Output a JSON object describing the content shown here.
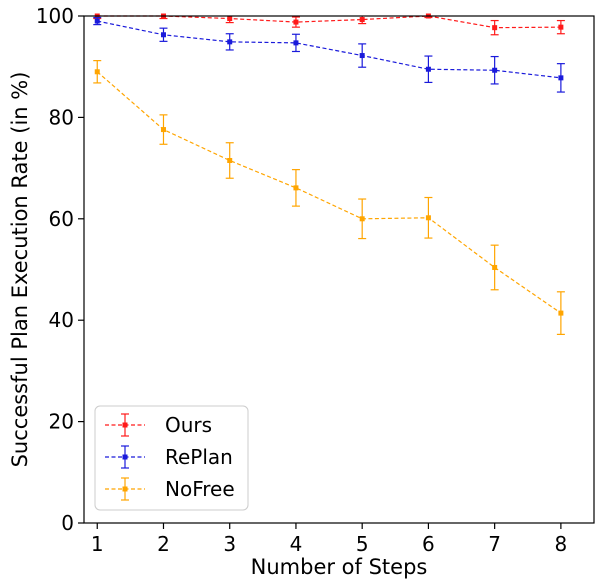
{
  "chart_data": {
    "type": "line",
    "xlabel": "Number of Steps",
    "ylabel": "Successful Plan Execution Rate (in %)",
    "x": [
      1,
      2,
      3,
      4,
      5,
      6,
      7,
      8
    ],
    "xticks": [
      1,
      2,
      3,
      4,
      5,
      6,
      7,
      8
    ],
    "yticks": [
      0,
      20,
      40,
      60,
      80,
      100
    ],
    "xlim": [
      0.8,
      8.5
    ],
    "ylim": [
      0,
      100
    ],
    "grid": false,
    "legend_position": "bottom-left",
    "series": [
      {
        "name": "Ours",
        "color": "#ff1a1a",
        "values": [
          100,
          100,
          99.5,
          98.8,
          99.3,
          100,
          97.7,
          97.8
        ],
        "errors": [
          0.5,
          0.5,
          0.8,
          1.0,
          0.8,
          0.3,
          1.4,
          1.3
        ]
      },
      {
        "name": "RePlan",
        "color": "#1a1adb",
        "values": [
          99,
          96.3,
          94.9,
          94.7,
          92.2,
          89.5,
          89.3,
          87.8
        ],
        "errors": [
          0.7,
          1.3,
          1.6,
          1.7,
          2.3,
          2.6,
          2.7,
          2.8
        ]
      },
      {
        "name": "NoFree",
        "color": "#ffa500",
        "values": [
          89,
          77.6,
          71.5,
          66.1,
          60,
          60.2,
          50.4,
          41.4
        ],
        "errors": [
          2.2,
          2.9,
          3.5,
          3.6,
          3.9,
          4.0,
          4.4,
          4.2
        ]
      }
    ]
  }
}
